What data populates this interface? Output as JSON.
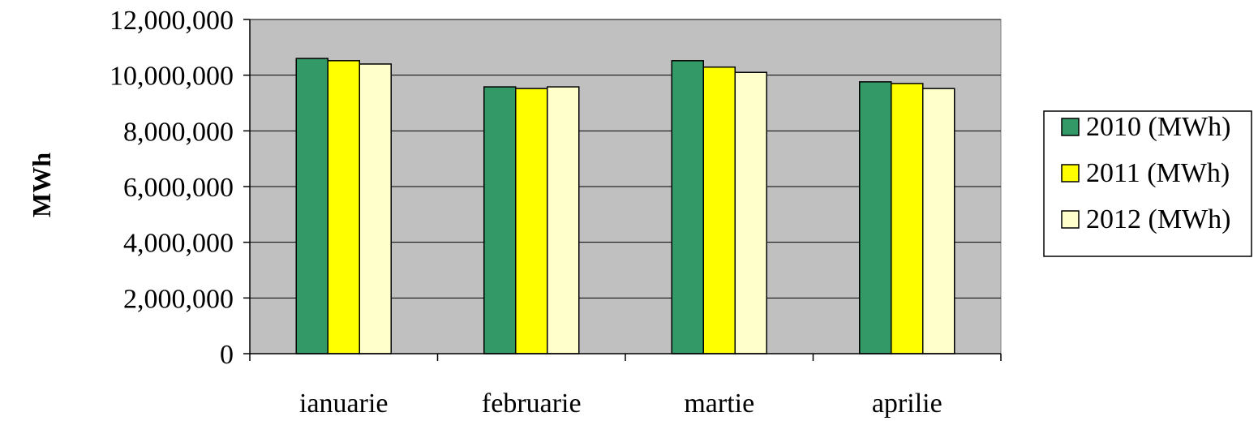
{
  "chart_data": {
    "type": "bar",
    "title": "",
    "xlabel": "",
    "ylabel": "MWh",
    "categories": [
      "ianuarie",
      "februarie",
      "martie",
      "aprilie"
    ],
    "series": [
      {
        "name": "2010 (MWh)",
        "color": "#339966",
        "values": [
          10600000,
          9580000,
          10520000,
          9760000
        ]
      },
      {
        "name": "2011 (MWh)",
        "color": "#FFFF00",
        "values": [
          10520000,
          9520000,
          10290000,
          9700000
        ]
      },
      {
        "name": "2012 (MWh)",
        "color": "#FFFFCC",
        "values": [
          10400000,
          9580000,
          10100000,
          9520000
        ]
      }
    ],
    "ylim": [
      0,
      12000000
    ],
    "y_ticks": [
      0,
      2000000,
      4000000,
      6000000,
      8000000,
      10000000,
      12000000
    ],
    "y_tick_labels": [
      "0",
      "2,000,000",
      "4,000,000",
      "6,000,000",
      "8,000,000",
      "10,000,000",
      "12,000,000"
    ],
    "grid": true,
    "plot_background": "#C0C0C0",
    "legend_position": "right"
  }
}
